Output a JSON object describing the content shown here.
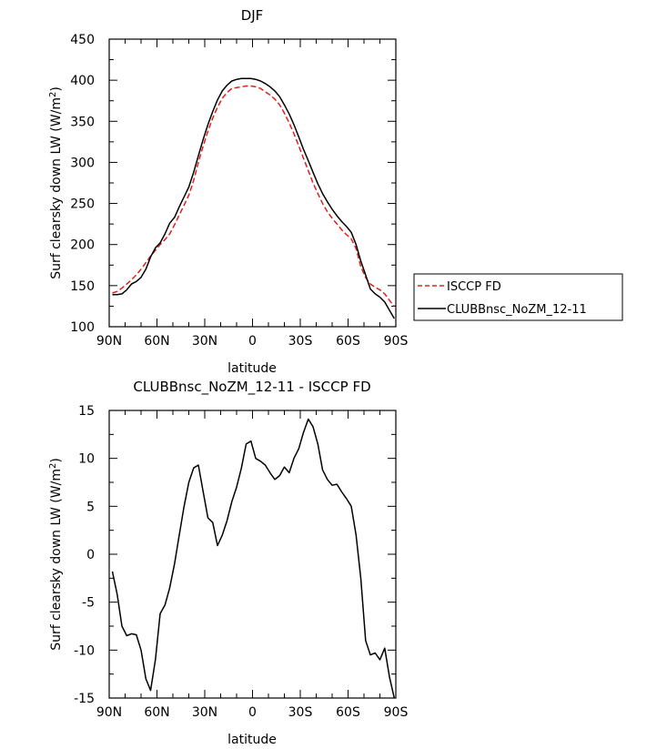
{
  "chart_data": [
    {
      "type": "line",
      "title": "DJF",
      "xlabel": "latitude",
      "ylabel": "Surf clearsky down LW (W/m²)",
      "ylabel_prefix": "Surf clearsky down LW (W/m",
      "ylabel_sup": "2",
      "ylabel_suffix": ")",
      "xlim": [
        "90N",
        "90S"
      ],
      "ylim": [
        100,
        450
      ],
      "xticks": [
        "90N",
        "60N",
        "30N",
        "0",
        "30S",
        "60S",
        "90S"
      ],
      "yticks": [
        "100",
        "150",
        "200",
        "250",
        "300",
        "350",
        "400",
        "450"
      ],
      "grid": false,
      "legend_position": "right-outside",
      "x": [
        "88N",
        "85N",
        "82N",
        "79N",
        "76N",
        "73N",
        "70N",
        "67N",
        "64N",
        "61N",
        "58N",
        "55N",
        "52N",
        "49N",
        "46N",
        "43N",
        "40N",
        "37N",
        "34N",
        "31N",
        "28N",
        "25N",
        "22N",
        "19N",
        "16N",
        "13N",
        "10N",
        "7N",
        "4N",
        "1N",
        "2S",
        "5S",
        "8S",
        "11S",
        "14S",
        "17S",
        "20S",
        "23S",
        "26S",
        "29S",
        "32S",
        "35S",
        "38S",
        "41S",
        "44S",
        "47S",
        "50S",
        "53S",
        "56S",
        "59S",
        "62S",
        "65S",
        "68S",
        "71S",
        "74S",
        "77S",
        "80S",
        "83S",
        "86S",
        "89S"
      ],
      "series": [
        {
          "name": "ISCCP FD",
          "color": "#e0201c",
          "style": "dashed",
          "values": [
            141,
            143,
            147,
            152,
            157,
            163,
            170,
            178,
            186,
            193,
            200,
            206,
            213,
            224,
            236,
            248,
            260,
            278,
            300,
            320,
            338,
            354,
            367,
            378,
            385,
            390,
            391,
            392,
            393,
            393,
            392,
            390,
            386,
            382,
            377,
            370,
            360,
            348,
            335,
            320,
            305,
            290,
            275,
            262,
            250,
            240,
            232,
            225,
            218,
            212,
            207,
            195,
            173,
            160,
            152,
            148,
            145,
            140,
            132,
            125
          ]
        },
        {
          "name": "CLUBBnsc_NoZM_12-11",
          "color": "#000000",
          "style": "solid",
          "values": [
            139,
            139,
            140,
            145,
            152,
            155,
            160,
            170,
            185,
            196,
            202,
            213,
            226,
            233,
            246,
            258,
            270,
            288,
            308,
            328,
            346,
            362,
            376,
            387,
            394,
            399,
            401,
            402,
            402,
            402,
            401,
            399,
            396,
            392,
            387,
            380,
            370,
            359,
            346,
            331,
            316,
            302,
            288,
            274,
            262,
            252,
            243,
            235,
            228,
            222,
            215,
            200,
            180,
            163,
            146,
            140,
            136,
            130,
            120,
            110
          ]
        }
      ]
    },
    {
      "type": "line",
      "title": "CLUBBnsc_NoZM_12-11 - ISCCP FD",
      "xlabel": "latitude",
      "ylabel": "Surf clearsky down LW (W/m²)",
      "ylabel_prefix": "Surf clearsky down LW (W/m",
      "ylabel_sup": "2",
      "ylabel_suffix": ")",
      "xlim": [
        "90N",
        "90S"
      ],
      "ylim": [
        -15,
        15
      ],
      "xticks": [
        "90N",
        "60N",
        "30N",
        "0",
        "30S",
        "60S",
        "90S"
      ],
      "yticks": [
        "-15",
        "-10",
        "-5",
        "0",
        "5",
        "10",
        "15"
      ],
      "grid": false,
      "x": [
        "88N",
        "85N",
        "82N",
        "79N",
        "76N",
        "73N",
        "70N",
        "67N",
        "64N",
        "61N",
        "58N",
        "55N",
        "52N",
        "49N",
        "46N",
        "43N",
        "40N",
        "37N",
        "34N",
        "31N",
        "28N",
        "25N",
        "22N",
        "19N",
        "16N",
        "13N",
        "10N",
        "7N",
        "4N",
        "1N",
        "2S",
        "5S",
        "8S",
        "11S",
        "14S",
        "17S",
        "20S",
        "23S",
        "26S",
        "29S",
        "32S",
        "35S",
        "38S",
        "41S",
        "44S",
        "47S",
        "50S",
        "53S",
        "56S",
        "59S",
        "62S",
        "65S",
        "68S",
        "71S",
        "74S",
        "77S",
        "80S",
        "83S",
        "86S",
        "89S"
      ],
      "series": [
        {
          "name": "CLUBBnsc_NoZM_12-11 - ISCCP FD",
          "color": "#000000",
          "style": "solid",
          "values": [
            -1.8,
            -4.2,
            -7.5,
            -8.5,
            -8.3,
            -8.4,
            -10.0,
            -13.0,
            -14.2,
            -11.0,
            -6.2,
            -5.3,
            -3.5,
            -1.0,
            2.0,
            5.0,
            7.5,
            9.0,
            9.3,
            6.5,
            3.8,
            3.3,
            0.9,
            2.0,
            3.5,
            5.5,
            7.0,
            9.0,
            11.5,
            11.8,
            10.0,
            9.7,
            9.3,
            8.5,
            7.8,
            8.2,
            9.1,
            8.5,
            10.0,
            11.0,
            12.7,
            14.1,
            13.3,
            11.5,
            8.8,
            7.8,
            7.2,
            7.3,
            6.5,
            5.8,
            5.0,
            2.0,
            -2.5,
            -9.0,
            -10.5,
            -10.3,
            -11.0,
            -9.8,
            -12.8,
            -15.0
          ]
        }
      ]
    }
  ]
}
